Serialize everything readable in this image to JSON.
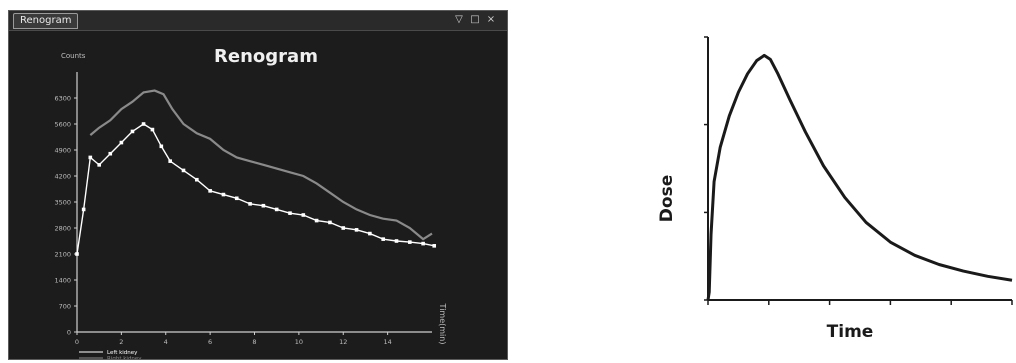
{
  "window": {
    "tab_label": "Renogram",
    "minimize_glyph": "▽",
    "maximize_glyph": "□",
    "close_glyph": "×"
  },
  "chart_data": [
    {
      "type": "line",
      "title": "Renogram",
      "ylabel": "Counts",
      "xlabel": "Time(min)",
      "ylim": [
        0,
        7000
      ],
      "xlim": [
        0,
        16
      ],
      "yticks": [
        0,
        700,
        1400,
        2100,
        2800,
        3500,
        4200,
        4900,
        5600,
        6300
      ],
      "xticks": [
        0,
        2,
        4,
        6,
        8,
        10,
        12,
        14
      ],
      "legend_position": "bottom-left",
      "series": [
        {
          "name": "Left kidney",
          "color": "#ffffff",
          "marker": "square",
          "points": [
            [
              0,
              2100
            ],
            [
              0.3,
              3300
            ],
            [
              0.6,
              4700
            ],
            [
              1.0,
              4500
            ],
            [
              1.5,
              4800
            ],
            [
              2.0,
              5100
            ],
            [
              2.5,
              5400
            ],
            [
              3.0,
              5600
            ],
            [
              3.4,
              5450
            ],
            [
              3.8,
              5000
            ],
            [
              4.2,
              4600
            ],
            [
              4.8,
              4350
            ],
            [
              5.4,
              4100
            ],
            [
              6.0,
              3800
            ],
            [
              6.6,
              3700
            ],
            [
              7.2,
              3600
            ],
            [
              7.8,
              3450
            ],
            [
              8.4,
              3400
            ],
            [
              9.0,
              3300
            ],
            [
              9.6,
              3200
            ],
            [
              10.2,
              3150
            ],
            [
              10.8,
              3000
            ],
            [
              11.4,
              2950
            ],
            [
              12.0,
              2800
            ],
            [
              12.6,
              2750
            ],
            [
              13.2,
              2650
            ],
            [
              13.8,
              2500
            ],
            [
              14.4,
              2450
            ],
            [
              15.0,
              2420
            ],
            [
              15.6,
              2380
            ],
            [
              16.1,
              2320
            ]
          ]
        },
        {
          "name": "Right kidney",
          "color": "#8a8a8a",
          "marker": "none",
          "points": [
            [
              0.6,
              5300
            ],
            [
              1.0,
              5500
            ],
            [
              1.5,
              5700
            ],
            [
              2.0,
              6000
            ],
            [
              2.5,
              6200
            ],
            [
              3.0,
              6450
            ],
            [
              3.5,
              6500
            ],
            [
              3.9,
              6400
            ],
            [
              4.3,
              6000
            ],
            [
              4.8,
              5600
            ],
            [
              5.4,
              5350
            ],
            [
              6.0,
              5200
            ],
            [
              6.6,
              4900
            ],
            [
              7.2,
              4700
            ],
            [
              7.8,
              4600
            ],
            [
              8.4,
              4500
            ],
            [
              9.0,
              4400
            ],
            [
              9.6,
              4300
            ],
            [
              10.2,
              4200
            ],
            [
              10.8,
              4000
            ],
            [
              11.4,
              3750
            ],
            [
              12.0,
              3500
            ],
            [
              12.6,
              3300
            ],
            [
              13.2,
              3150
            ],
            [
              13.8,
              3050
            ],
            [
              14.4,
              3000
            ],
            [
              15.0,
              2800
            ],
            [
              15.6,
              2500
            ],
            [
              16.0,
              2650
            ]
          ]
        }
      ]
    },
    {
      "type": "line",
      "title": "",
      "xlabel": "Time",
      "ylabel": "Dose",
      "xlim": [
        0,
        10
      ],
      "ylim": [
        0,
        10
      ],
      "xticks": [
        0,
        2,
        4,
        6,
        8,
        10
      ],
      "yticks": [
        0,
        3.33,
        6.67,
        10
      ],
      "series": [
        {
          "color": "#1a1a1a",
          "points": [
            [
              0,
              0
            ],
            [
              0.04,
              0.3
            ],
            [
              0.1,
              2.5
            ],
            [
              0.2,
              4.5
            ],
            [
              0.4,
              5.8
            ],
            [
              0.7,
              7.0
            ],
            [
              1.0,
              7.9
            ],
            [
              1.3,
              8.6
            ],
            [
              1.6,
              9.1
            ],
            [
              1.85,
              9.3
            ],
            [
              2.05,
              9.15
            ],
            [
              2.3,
              8.6
            ],
            [
              2.7,
              7.6
            ],
            [
              3.2,
              6.4
            ],
            [
              3.8,
              5.1
            ],
            [
              4.5,
              3.9
            ],
            [
              5.2,
              2.95
            ],
            [
              6.0,
              2.2
            ],
            [
              6.8,
              1.7
            ],
            [
              7.6,
              1.35
            ],
            [
              8.4,
              1.1
            ],
            [
              9.2,
              0.9
            ],
            [
              10.0,
              0.75
            ]
          ]
        }
      ]
    }
  ]
}
